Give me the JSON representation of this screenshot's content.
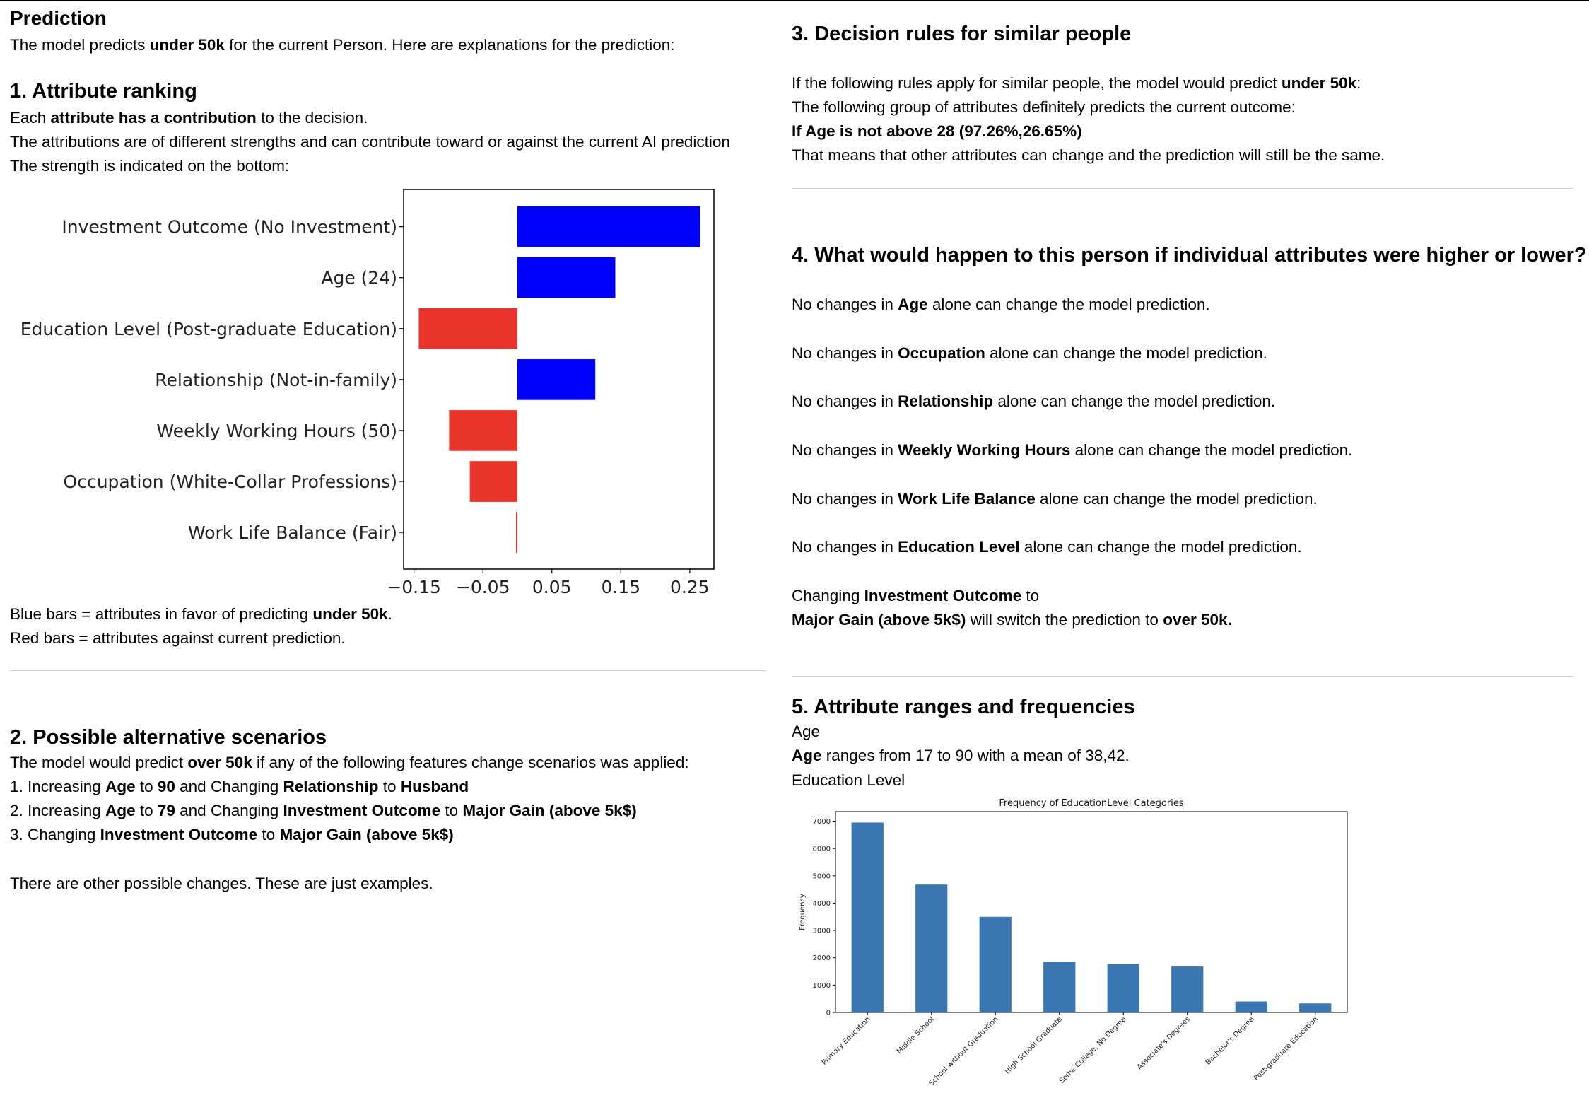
{
  "prediction": {
    "title": "Prediction",
    "intro": [
      "The model predicts ",
      "under 50k",
      " for the current Person. Here are explanations for the prediction:"
    ]
  },
  "section1": {
    "title": "1. Attribute ranking",
    "line1": [
      "Each ",
      "attribute has a contribution",
      " to the decision."
    ],
    "line2": "The attributions are of different strengths and can contribute toward or against the current AI prediction",
    "line3": "The strength is indicated on the bottom:",
    "legend_blue": [
      "Blue bars = attributes in favor of predicting ",
      "under 50k",
      "."
    ],
    "legend_red": "Red bars = attributes against current prediction."
  },
  "section2": {
    "title": "2. Possible alternative scenarios",
    "intro": [
      "The model would predict ",
      "over 50k",
      " if any of the following features change scenarios was applied:"
    ],
    "items": [
      [
        "1. Increasing ",
        "Age",
        " to ",
        "90",
        " and Changing ",
        "Relationship",
        " to ",
        "Husband"
      ],
      [
        "2. Increasing ",
        "Age",
        " to ",
        "79",
        " and Changing ",
        "Investment Outcome",
        " to ",
        "Major Gain (above 5k$)"
      ],
      [
        "3. Changing ",
        "Investment Outcome",
        " to ",
        "Major Gain (above 5k$)"
      ]
    ],
    "footer": "There are other possible changes. These are just examples."
  },
  "section3": {
    "title": "3. Decision rules for similar people",
    "line1": [
      "If the following rules apply for similar people, the model would predict ",
      "under 50k",
      ":"
    ],
    "line2": "The following group of attributes definitely predicts the current outcome:",
    "rule": "If Age is not above 28 (97.26%,26.65%)",
    "line4": "That means that other attributes can change and the prediction will still be the same."
  },
  "section4": {
    "title": "4. What would happen to this person if individual attributes were higher or lower?",
    "items": [
      [
        "No changes in ",
        "Age",
        " alone can change the model prediction."
      ],
      [
        "No changes in ",
        "Occupation",
        " alone can change the model prediction."
      ],
      [
        "No changes in ",
        "Relationship",
        " alone can change the model prediction."
      ],
      [
        "No changes in ",
        "Weekly Working Hours",
        " alone can change the model prediction."
      ],
      [
        "No changes in ",
        "Work Life Balance",
        " alone can change the model prediction."
      ],
      [
        "No changes in ",
        "Education Level",
        " alone can change the model prediction."
      ]
    ],
    "change_line1": [
      "Changing ",
      "Investment Outcome",
      " to"
    ],
    "change_line2": [
      "Major Gain (above 5k$)",
      " will switch the prediction to ",
      "over 50k."
    ]
  },
  "section5": {
    "title": "5. Attribute ranges and frequencies",
    "attr1": "Age",
    "range_line": [
      "Age",
      " ranges from 17 to 90 with a mean of 38,42."
    ],
    "attr2": "Education Level"
  },
  "chart_data": [
    {
      "type": "bar",
      "orientation": "horizontal",
      "title": "",
      "categories": [
        "Investment Outcome (No Investment)",
        "Age (24)",
        "Education Level (Post-graduate Education)",
        "Relationship (Not-in-family)",
        "Weekly Working Hours (50)",
        "Occupation (White-Collar Professions)",
        "Work Life Balance (Fair)"
      ],
      "values": [
        0.265,
        0.142,
        -0.143,
        0.113,
        -0.099,
        -0.069,
        -0.002
      ],
      "xlim": [
        -0.165,
        0.285
      ],
      "xticks": [
        -0.15,
        -0.05,
        0.05,
        0.15,
        0.25
      ],
      "xtick_labels": [
        "−0.15",
        "−0.05",
        "0.05",
        "0.15",
        "0.25"
      ],
      "colors": {
        "positive": "#0000ff",
        "negative": "#e8342a"
      }
    },
    {
      "type": "bar",
      "title": "Frequency of EducationLevel Categories",
      "xlabel": "",
      "ylabel": "Frequency",
      "categories": [
        "Primary Education",
        "Middle School",
        "School without Graduation",
        "High School Graduate",
        "Some College, No Degree",
        "Associate's Degrees",
        "Bachelor's Degree",
        "Post-graduate Education"
      ],
      "values": [
        6950,
        4680,
        3500,
        1860,
        1760,
        1680,
        400,
        330
      ],
      "ylim": [
        0,
        7350
      ],
      "yticks": [
        0,
        1000,
        2000,
        3000,
        4000,
        5000,
        6000,
        7000
      ],
      "color": "#3a76b2"
    }
  ]
}
